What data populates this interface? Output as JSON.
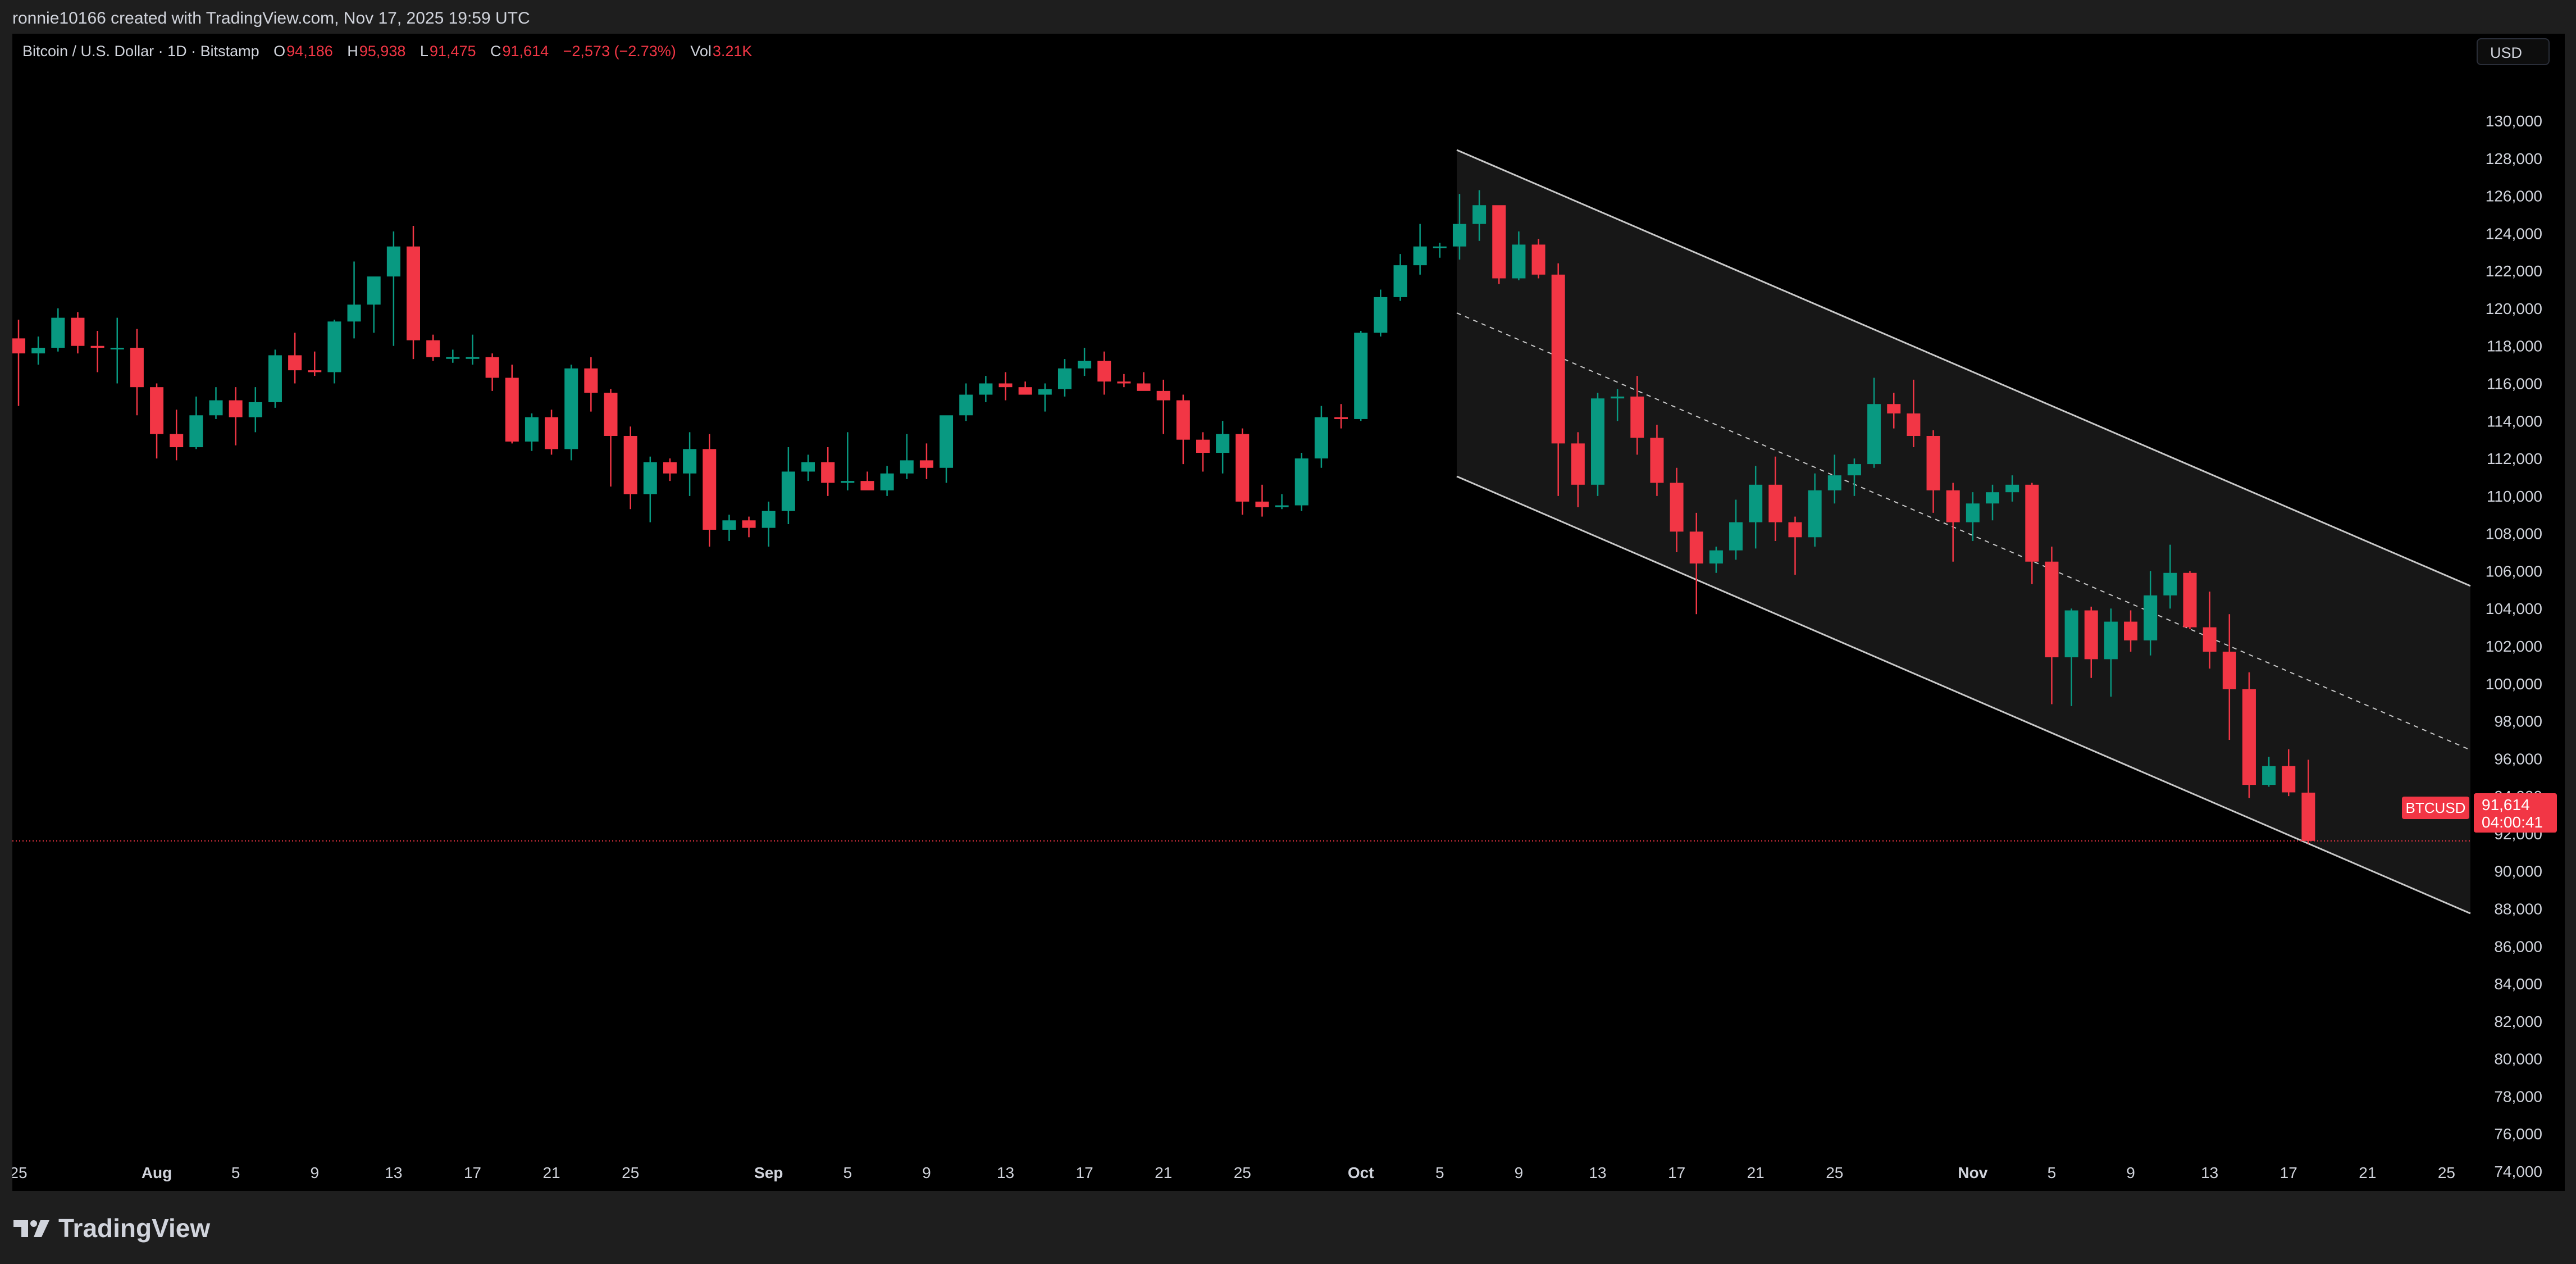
{
  "header": {
    "credit": "ronnie10166 created with TradingView.com, Nov 17, 2025 19:59 UTC"
  },
  "legend": {
    "symbol": "Bitcoin / U.S. Dollar · 1D · Bitstamp",
    "o_label": "O",
    "o_value": "94,186",
    "h_label": "H",
    "h_value": "95,938",
    "l_label": "L",
    "l_value": "91,475",
    "c_label": "C",
    "c_value": "91,614",
    "change": "−2,573 (−2.73%)",
    "vol_label": "Vol",
    "vol_value": "3.21K"
  },
  "currency": "USD",
  "brand": "TradingView",
  "price_tag": {
    "symbol": "BTCUSD",
    "price": "91,614",
    "countdown": "04:00:41"
  },
  "colors": {
    "up": "#089981",
    "down": "#f23645",
    "background": "#000000",
    "frame": "#1e1e1e",
    "channel": "#c8c8c8"
  },
  "chart_data": {
    "type": "candlestick",
    "title": "Bitcoin / U.S. Dollar · 1D · Bitstamp",
    "ylim": [
      73000,
      131000
    ],
    "y_ticks": [
      74000,
      76000,
      78000,
      80000,
      82000,
      84000,
      86000,
      88000,
      90000,
      92000,
      94000,
      96000,
      98000,
      100000,
      102000,
      104000,
      106000,
      108000,
      110000,
      112000,
      114000,
      116000,
      118000,
      120000,
      122000,
      124000,
      126000,
      128000,
      130000
    ],
    "x_ticks": [
      "25",
      "Aug",
      "5",
      "9",
      "13",
      "17",
      "21",
      "25",
      "Sep",
      "5",
      "9",
      "13",
      "17",
      "21",
      "25",
      "Oct",
      "5",
      "9",
      "13",
      "17",
      "21",
      "25",
      "Nov",
      "5",
      "9",
      "13",
      "17",
      "21",
      "25"
    ],
    "x_tick_days": [
      0,
      7,
      11,
      15,
      19,
      23,
      27,
      31,
      38,
      42,
      46,
      50,
      54,
      58,
      62,
      68,
      72,
      76,
      80,
      84,
      88,
      92,
      99,
      103,
      107,
      111,
      115,
      119,
      123
    ],
    "start_date": "2025-07-25",
    "last_price": 91614,
    "candles": [
      [
        118400,
        119400,
        114800,
        117600
      ],
      [
        117600,
        118500,
        117000,
        117900
      ],
      [
        117900,
        120000,
        117700,
        119500
      ],
      [
        119500,
        119800,
        117600,
        118000
      ],
      [
        118000,
        118800,
        116600,
        117900
      ],
      [
        117900,
        119500,
        116000,
        117900
      ],
      [
        117900,
        118900,
        114300,
        115800
      ],
      [
        115800,
        116000,
        112000,
        113300
      ],
      [
        113300,
        114600,
        111900,
        112600
      ],
      [
        112600,
        115300,
        112500,
        114300
      ],
      [
        114300,
        115800,
        114100,
        115100
      ],
      [
        115100,
        115800,
        112700,
        114200
      ],
      [
        114200,
        115800,
        113400,
        115000
      ],
      [
        115000,
        117800,
        114700,
        117500
      ],
      [
        117500,
        118700,
        116000,
        116700
      ],
      [
        116700,
        117700,
        116400,
        116600
      ],
      [
        116600,
        119400,
        116000,
        119300
      ],
      [
        119300,
        122500,
        118400,
        120200
      ],
      [
        120200,
        121300,
        118700,
        121700
      ],
      [
        121700,
        124100,
        118000,
        123300
      ],
      [
        123300,
        124400,
        117300,
        118300
      ],
      [
        118300,
        118600,
        117200,
        117400
      ],
      [
        117400,
        117800,
        117100,
        117400
      ],
      [
        117400,
        118600,
        117000,
        117400
      ],
      [
        117400,
        117600,
        115600,
        116300
      ],
      [
        116300,
        117000,
        112800,
        112900
      ],
      [
        112900,
        114400,
        112400,
        114200
      ],
      [
        114200,
        114600,
        112200,
        112500
      ],
      [
        112500,
        117000,
        111900,
        116800
      ],
      [
        116800,
        117400,
        114500,
        115500
      ],
      [
        115500,
        115700,
        110500,
        113200
      ],
      [
        113200,
        113700,
        109300,
        110100
      ],
      [
        110100,
        112100,
        108600,
        111800
      ],
      [
        111800,
        112000,
        110800,
        111200
      ],
      [
        111200,
        113400,
        110000,
        112500
      ],
      [
        112500,
        113300,
        107300,
        108200
      ],
      [
        108200,
        109000,
        107600,
        108700
      ],
      [
        108700,
        108900,
        107800,
        108300
      ],
      [
        108300,
        109700,
        107300,
        109200
      ],
      [
        109200,
        112600,
        108500,
        111300
      ],
      [
        111300,
        112200,
        110800,
        111800
      ],
      [
        111800,
        112600,
        110000,
        110700
      ],
      [
        110700,
        113400,
        110300,
        110800
      ],
      [
        110800,
        111300,
        110400,
        110300
      ],
      [
        110300,
        111600,
        110000,
        111200
      ],
      [
        111200,
        113300,
        110900,
        111900
      ],
      [
        111900,
        112800,
        110900,
        111500
      ],
      [
        111500,
        114200,
        110700,
        114300
      ],
      [
        114300,
        116000,
        114000,
        115400
      ],
      [
        115400,
        116400,
        115000,
        116000
      ],
      [
        116000,
        116600,
        115100,
        115800
      ],
      [
        115800,
        116100,
        115600,
        115400
      ],
      [
        115400,
        116000,
        114500,
        115700
      ],
      [
        115700,
        117300,
        115300,
        116800
      ],
      [
        116800,
        117900,
        116400,
        117200
      ],
      [
        117200,
        117700,
        115400,
        116100
      ],
      [
        116100,
        116500,
        115800,
        116000
      ],
      [
        116000,
        116600,
        115700,
        115600
      ],
      [
        115600,
        116200,
        113300,
        115100
      ],
      [
        115100,
        115400,
        111700,
        113000
      ],
      [
        113000,
        113400,
        111300,
        112300
      ],
      [
        112300,
        114000,
        111200,
        113300
      ],
      [
        113300,
        113600,
        109000,
        109700
      ],
      [
        109700,
        110600,
        108900,
        109400
      ],
      [
        109400,
        110100,
        109300,
        109500
      ],
      [
        109500,
        112300,
        109200,
        112000
      ],
      [
        112000,
        114800,
        111500,
        114200
      ],
      [
        114200,
        114900,
        113600,
        114100
      ],
      [
        114100,
        118800,
        114000,
        118700
      ],
      [
        118700,
        121000,
        118500,
        120600
      ],
      [
        120600,
        122900,
        120400,
        122300
      ],
      [
        122300,
        124500,
        121800,
        123300
      ],
      [
        123300,
        123500,
        122700,
        123300
      ],
      [
        123300,
        126100,
        122600,
        124500
      ],
      [
        124500,
        126300,
        123600,
        125500
      ],
      [
        125500,
        125200,
        121300,
        121600
      ],
      [
        121600,
        124100,
        121500,
        123400
      ],
      [
        123400,
        123700,
        121600,
        121800
      ],
      [
        121800,
        122400,
        110000,
        112800
      ],
      [
        112800,
        113400,
        109400,
        110600
      ],
      [
        110600,
        115500,
        110000,
        115200
      ],
      [
        115200,
        115700,
        114000,
        115300
      ],
      [
        115300,
        116400,
        112200,
        113100
      ],
      [
        113100,
        113800,
        110000,
        110700
      ],
      [
        110700,
        111500,
        107000,
        108100
      ],
      [
        108100,
        109100,
        103700,
        106400
      ],
      [
        106400,
        107300,
        105900,
        107100
      ],
      [
        107100,
        109800,
        106600,
        108600
      ],
      [
        108600,
        111600,
        107200,
        110600
      ],
      [
        110600,
        112100,
        107600,
        108600
      ],
      [
        108600,
        108900,
        105800,
        107800
      ],
      [
        107800,
        111200,
        107300,
        110300
      ],
      [
        110300,
        112200,
        109600,
        111100
      ],
      [
        111100,
        112000,
        110000,
        111700
      ],
      [
        111700,
        116300,
        111500,
        114900
      ],
      [
        114900,
        115500,
        113600,
        114400
      ],
      [
        114400,
        116200,
        112600,
        113200
      ],
      [
        113200,
        113500,
        109100,
        110300
      ],
      [
        110300,
        110700,
        106500,
        108600
      ],
      [
        108600,
        110200,
        107600,
        109600
      ],
      [
        109600,
        110600,
        108700,
        110200
      ],
      [
        110200,
        111100,
        109700,
        110600
      ],
      [
        110600,
        110700,
        105300,
        106500
      ],
      [
        106500,
        107300,
        98900,
        101400
      ],
      [
        101400,
        104000,
        98800,
        103900
      ],
      [
        103900,
        104100,
        100300,
        101300
      ],
      [
        101300,
        104000,
        99300,
        103300
      ],
      [
        103300,
        103900,
        101700,
        102300
      ],
      [
        102300,
        106000,
        101500,
        104700
      ],
      [
        104700,
        107400,
        104000,
        105900
      ],
      [
        105900,
        106000,
        102900,
        103000
      ],
      [
        103000,
        104900,
        100800,
        101700
      ],
      [
        101700,
        103700,
        97000,
        99700
      ],
      [
        99700,
        100600,
        93900,
        94600
      ],
      [
        94600,
        96100,
        94500,
        95600
      ],
      [
        95600,
        96500,
        94000,
        94200
      ],
      [
        94186,
        95938,
        91475,
        91614
      ]
    ]
  }
}
